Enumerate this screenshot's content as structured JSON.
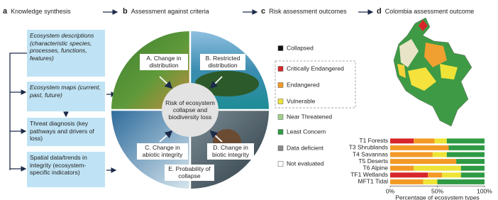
{
  "panel_a": {
    "label": "a",
    "title": "Knowledge synthesis",
    "boxes": [
      "Ecosystem descriptions (characteristic species, processes, functions, features)",
      "Ecosystem maps (current, past, future)",
      "Threat diagnosis (key pathways and drivers of loss)",
      "Spatial data/trends in integrity (ecosystem-specific indicators)"
    ]
  },
  "panel_b": {
    "label": "b",
    "title": "Assessment against criteria",
    "center": "Risk of ecosystem collapse and biodiversity loss",
    "criteria": [
      "A. Change in distribution",
      "B. Restricted distribution",
      "C. Change in abiotic integrity",
      "D. Change in biotic integrity",
      "E. Probability of collapse"
    ]
  },
  "panel_c": {
    "label": "c",
    "title": "Risk assessment outcomes"
  },
  "panel_d": {
    "label": "d",
    "title": "Colombia assessment outcome"
  },
  "chart_data": {
    "type": "bar",
    "orientation": "horizontal",
    "stacked": true,
    "categories": [
      "T1 Forests",
      "T3 Shrublands",
      "T4 Savannas",
      "T5 Deserts",
      "T6 Alpine",
      "TF1 Wetlands",
      "MFT1 Tidal"
    ],
    "series": [
      {
        "name": "Collapsed",
        "color": "#111111",
        "values": [
          0,
          0,
          0,
          0,
          0,
          0,
          0
        ]
      },
      {
        "name": "Critically Endangered",
        "color": "#d7262b",
        "values": [
          25,
          0,
          0,
          0,
          0,
          40,
          0
        ]
      },
      {
        "name": "Endangered",
        "color": "#f39a26",
        "values": [
          22,
          62,
          45,
          70,
          25,
          15,
          35
        ]
      },
      {
        "name": "Vulnerable",
        "color": "#eee437",
        "values": [
          13,
          0,
          15,
          0,
          50,
          20,
          15
        ]
      },
      {
        "name": "Near Threatened",
        "color": "#a3d18c",
        "values": [
          0,
          0,
          0,
          0,
          0,
          0,
          0
        ]
      },
      {
        "name": "Least Concern",
        "color": "#2f9a45",
        "values": [
          40,
          38,
          40,
          30,
          25,
          25,
          50
        ]
      },
      {
        "name": "Data deficient",
        "color": "#8a8a8a",
        "values": [
          0,
          0,
          0,
          0,
          0,
          0,
          0
        ]
      },
      {
        "name": "Not evaluated",
        "color": "#ffffff",
        "values": [
          0,
          0,
          0,
          0,
          0,
          0,
          0
        ]
      }
    ],
    "xlim": [
      0,
      100
    ],
    "xticks": [
      {
        "value": 0,
        "label": "0%"
      },
      {
        "value": 50,
        "label": "50%"
      },
      {
        "value": 100,
        "label": "100%"
      }
    ],
    "xlabel": "Percentage of ecosystem types"
  }
}
